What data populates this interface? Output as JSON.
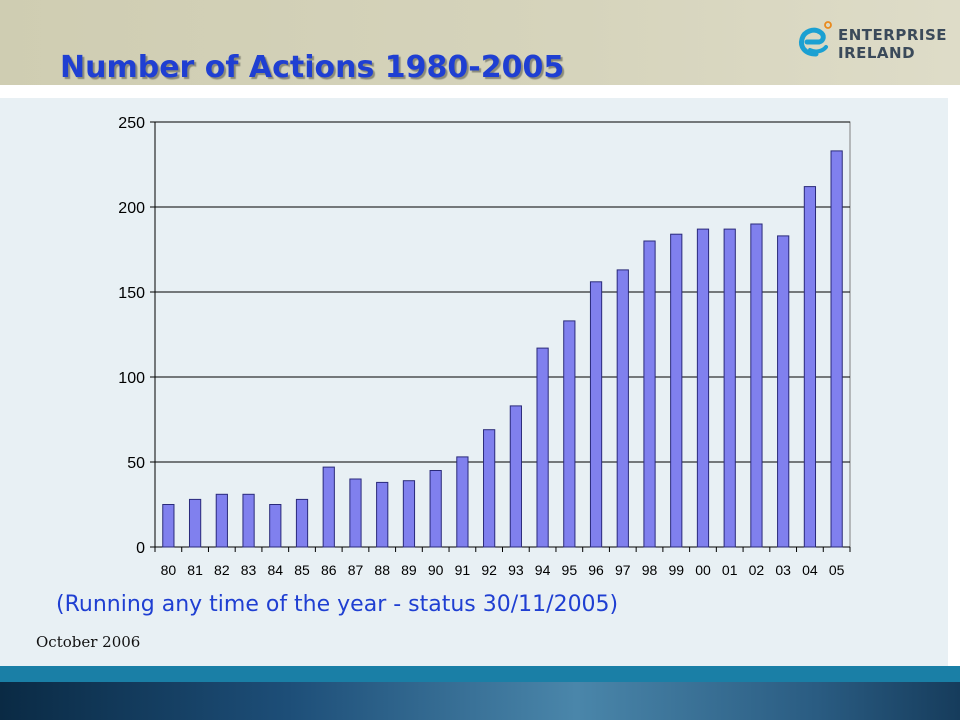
{
  "slide": {
    "title": "Number of Actions 1980-2005",
    "subtitle": "(Running any time of the year - status 30/11/2005)",
    "date": "October 2006"
  },
  "logo": {
    "line1": "ENTERPRISE",
    "line2": "IRELAND",
    "icon": "enterprise-ireland-e-logo"
  },
  "colors": {
    "title": "#1f3fd2",
    "bar_fill": "#8080ee",
    "bar_stroke": "#2a2a7a",
    "header_band": "#d3d1b8"
  },
  "chart_data": {
    "type": "bar",
    "categories": [
      "80",
      "81",
      "82",
      "83",
      "84",
      "85",
      "86",
      "87",
      "88",
      "89",
      "90",
      "91",
      "92",
      "93",
      "94",
      "95",
      "96",
      "97",
      "98",
      "99",
      "00",
      "01",
      "02",
      "03",
      "04",
      "05"
    ],
    "values": [
      25,
      28,
      31,
      31,
      25,
      28,
      47,
      40,
      38,
      39,
      45,
      53,
      69,
      83,
      117,
      133,
      156,
      163,
      180,
      184,
      187,
      187,
      190,
      183,
      212,
      233
    ],
    "title": "",
    "xlabel": "",
    "ylabel": "",
    "ylim": [
      0,
      250
    ],
    "yticks": [
      "0",
      "50",
      "100",
      "150",
      "200",
      "250"
    ],
    "grid": true,
    "legend": "none"
  }
}
